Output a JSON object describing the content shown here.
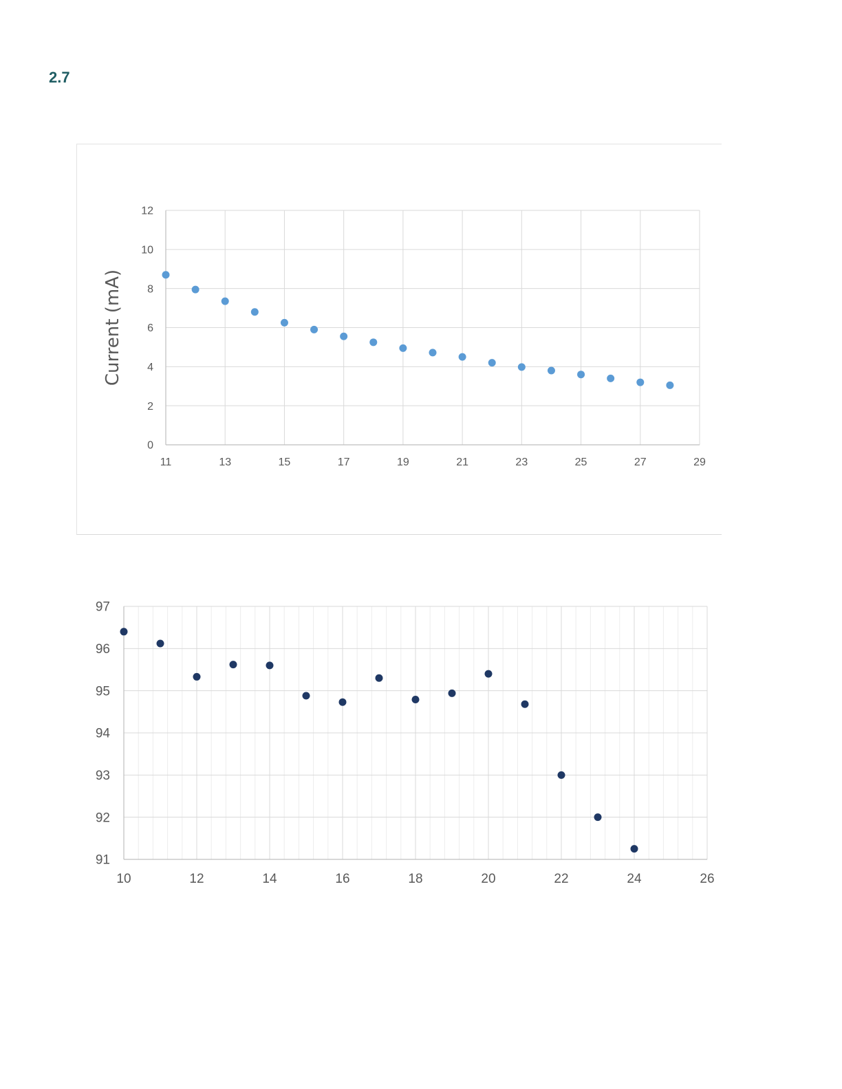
{
  "heading": "2.7",
  "chart_data": [
    {
      "type": "scatter",
      "title": "",
      "xlabel": "",
      "ylabel": "Current (mA)",
      "xlim": [
        11,
        29
      ],
      "ylim": [
        0,
        12
      ],
      "xticks": [
        11,
        13,
        15,
        17,
        19,
        21,
        23,
        25,
        27,
        29
      ],
      "yticks": [
        0,
        2,
        4,
        6,
        8,
        10,
        12
      ],
      "grid": true,
      "legend": "none",
      "color": "#5b9bd5",
      "series": [
        {
          "x": [
            11,
            12,
            13,
            14,
            15,
            16,
            17,
            18,
            19,
            20,
            21,
            22,
            23,
            24,
            25,
            26,
            27,
            28
          ],
          "y": [
            8.7,
            7.95,
            7.35,
            6.8,
            6.25,
            5.9,
            5.55,
            5.25,
            4.95,
            4.72,
            4.5,
            4.2,
            3.98,
            3.8,
            3.6,
            3.4,
            3.2,
            3.05
          ]
        }
      ]
    },
    {
      "type": "scatter",
      "title": "",
      "xlabel": "",
      "ylabel": "",
      "xlim": [
        10,
        26
      ],
      "ylim": [
        91,
        97
      ],
      "xticks": [
        10,
        12,
        14,
        16,
        18,
        20,
        22,
        24,
        26
      ],
      "yticks": [
        91,
        92,
        93,
        94,
        95,
        96,
        97
      ],
      "grid": true,
      "minor_grid": true,
      "legend": "none",
      "color": "#1f3864",
      "series": [
        {
          "x": [
            10,
            11,
            12,
            13,
            14,
            15,
            16,
            17,
            18,
            19,
            20,
            21,
            22,
            23,
            24
          ],
          "y": [
            96.4,
            96.12,
            95.33,
            95.62,
            95.6,
            94.88,
            94.73,
            95.3,
            94.79,
            94.94,
            95.4,
            94.68,
            93.0,
            92.0,
            91.25
          ]
        }
      ]
    }
  ]
}
